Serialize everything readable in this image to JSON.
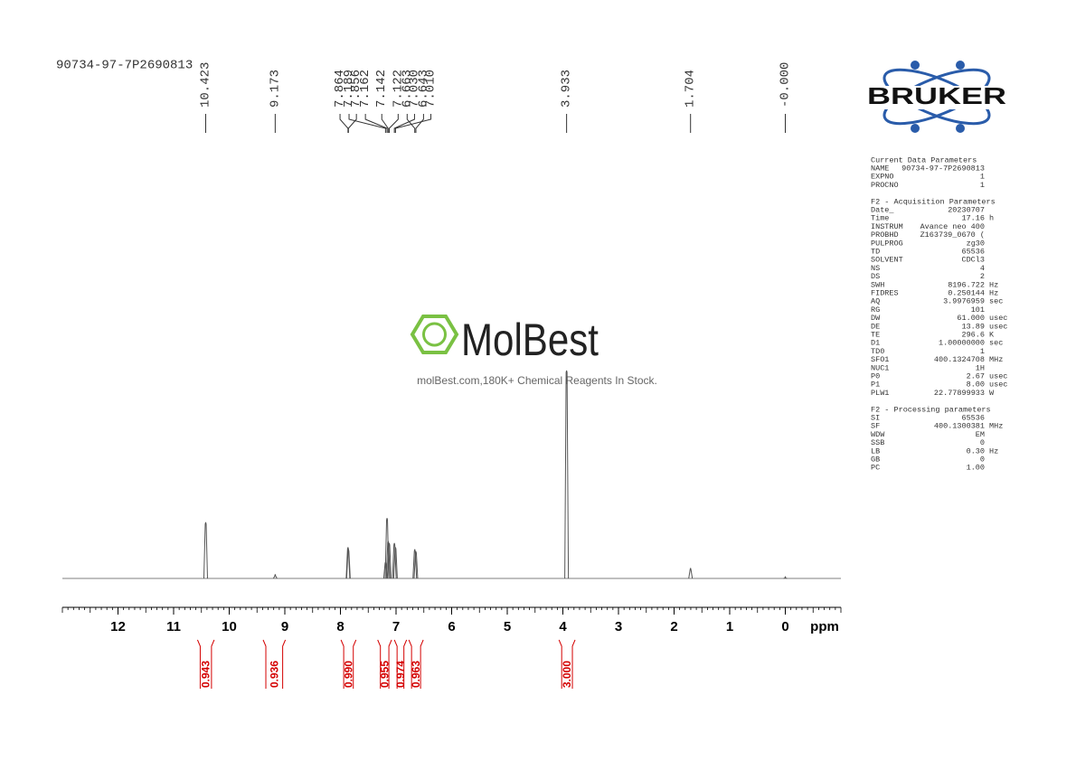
{
  "title": "90734-97-7P2690813",
  "chart_data": {
    "type": "nmr",
    "x": [
      10.423,
      9.173,
      7.864,
      7.856,
      7.189,
      7.162,
      7.142,
      7.122,
      7.03,
      7.01,
      6.663,
      6.643,
      3.933,
      1.704,
      0
    ],
    "x_labels": [
      "10.423",
      "9.173",
      "7.864",
      "7.856",
      "7.189",
      "7.162",
      "7.142",
      "7.122",
      "7.030",
      "7.010",
      "6.663",
      "6.643",
      "3.933",
      "1.704",
      "-0.000"
    ],
    "values": [
      27,
      2,
      15,
      14,
      8,
      29,
      18,
      17,
      17,
      15,
      14,
      13,
      100,
      5,
      1
    ],
    "color": "#555555",
    "xlim": [
      13,
      -1
    ],
    "ylim": [
      0,
      100
    ],
    "xticks": [
      12,
      11,
      10,
      9,
      8,
      7,
      6,
      5,
      4,
      3,
      2,
      1,
      0
    ],
    "xlabel": "ppm",
    "minor_xtick_step": 0.1,
    "integrals": {
      "ranges": [
        [
          10.57,
          10.27
        ],
        [
          9.39,
          8.99
        ],
        [
          7.99,
          7.72
        ],
        [
          7.33,
          7.08
        ],
        [
          7.03,
          6.81
        ],
        [
          6.77,
          6.51
        ],
        [
          4.07,
          3.78
        ]
      ],
      "values": [
        0.943,
        0.936,
        0.99,
        0.955,
        0.974,
        0.963,
        3
      ],
      "value_labels": [
        "0.943",
        "0.936",
        "0.990",
        "0.955",
        "0.974",
        "0.963",
        "3.000"
      ],
      "color": "#d40000"
    }
  },
  "watermark": {
    "brand": "MolBest",
    "text": "molBest.com,180K+ Chemical Reagents In Stock."
  },
  "logo": "BRUKER",
  "parameters": [
    {
      "title": "Current Data Parameters",
      "rows": [
        [
          "NAME",
          "90734-97-7P2690813"
        ],
        [
          "EXPNO",
          "1"
        ],
        [
          "PROCNO",
          "1"
        ]
      ]
    },
    {
      "title": "F2 - Acquisition Parameters",
      "rows": [
        [
          "Date_",
          "20230707"
        ],
        [
          "Time",
          "17.16",
          "h"
        ],
        [
          "INSTRUM",
          "Avance neo 400"
        ],
        [
          "PROBHD",
          "Z163739_0670 ("
        ],
        [
          "PULPROG",
          "zg30"
        ],
        [
          "TD",
          "65536"
        ],
        [
          "SOLVENT",
          "CDCl3"
        ],
        [
          "NS",
          "4"
        ],
        [
          "DS",
          "2"
        ],
        [
          "SWH",
          "8196.722",
          "Hz"
        ],
        [
          "FIDRES",
          "0.250144",
          "Hz"
        ],
        [
          "AQ",
          "3.9976959",
          "sec"
        ],
        [
          "RG",
          "101"
        ],
        [
          "DW",
          "61.000",
          "usec"
        ],
        [
          "DE",
          "13.89",
          "usec"
        ],
        [
          "TE",
          "296.6",
          "K"
        ],
        [
          "D1",
          "1.00000000",
          "sec"
        ],
        [
          "TD0",
          "1"
        ],
        [
          "SFO1",
          "400.1324708",
          "MHz"
        ],
        [
          "NUC1",
          "1H"
        ],
        [
          "P0",
          "2.67",
          "usec"
        ],
        [
          "P1",
          "8.00",
          "usec"
        ],
        [
          "PLW1",
          "22.77899933",
          "W"
        ]
      ]
    },
    {
      "title": "F2 - Processing parameters",
      "rows": [
        [
          "SI",
          "65536"
        ],
        [
          "SF",
          "400.1300381",
          "MHz"
        ],
        [
          "WDW",
          "EM"
        ],
        [
          "SSB",
          "0"
        ],
        [
          "LB",
          "0.30",
          "Hz"
        ],
        [
          "GB",
          "0"
        ],
        [
          "PC",
          "1.00"
        ]
      ]
    }
  ]
}
